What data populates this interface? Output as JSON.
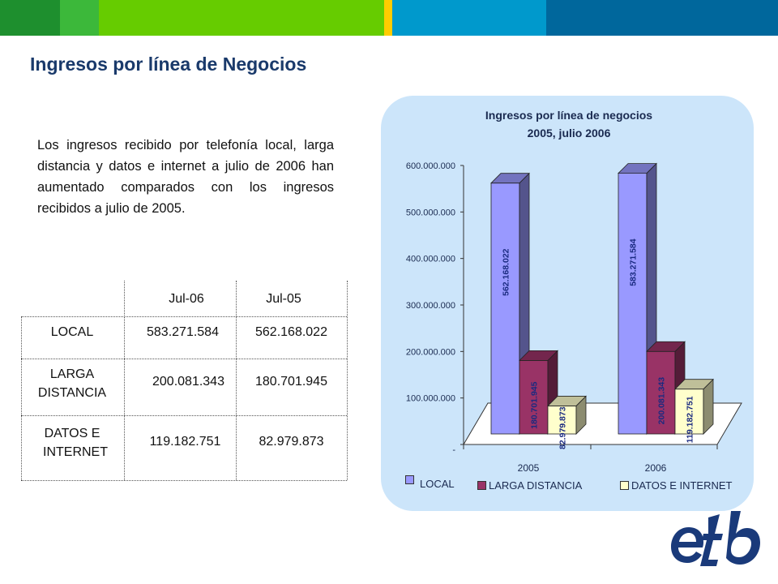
{
  "slide": {
    "title": "Ingresos por línea de Negocios",
    "paragraph": "Los ingresos recibido por telefonía local, larga distancia y datos e internet a julio de 2006 han aumentado comparados con los ingresos recibidos a julio de 2005.",
    "colors": {
      "band_dark_green": "#1e8f2e",
      "band_green": "#3cb83a",
      "band_lime": "#66cc00",
      "band_yellow": "#ffcc00",
      "band_blue": "#0099cc",
      "band_dark_blue": "#00679c",
      "title": "#1a3a6b",
      "panel": "#cce5fa"
    }
  },
  "table": {
    "headers": [
      "Jul-06",
      "Jul-05"
    ],
    "rows": [
      {
        "label_lines": [
          "LOCAL"
        ],
        "jul06": "583.271.584",
        "jul05": "562.168.022"
      },
      {
        "label_lines": [
          "LARGA",
          "DISTANCIA"
        ],
        "jul06": "200.081.343",
        "jul05": "180.701.945"
      },
      {
        "label_lines": [
          "DATOS E",
          "INTERNET"
        ],
        "jul06": "119.182.751",
        "jul05": "82.979.873"
      }
    ]
  },
  "chart_data": {
    "type": "bar",
    "title_lines": [
      "Ingresos por línea de negocios",
      "2005, julio 2006"
    ],
    "categories": [
      "2005",
      "2006"
    ],
    "series": [
      {
        "name": "LOCAL",
        "color": "#9999ff",
        "values": [
          562168022,
          583271584
        ],
        "labels": [
          "562.168.022",
          "583.271.584"
        ]
      },
      {
        "name": "LARGA DISTANCIA",
        "color": "#993366",
        "values": [
          180701945,
          200081343
        ],
        "labels": [
          "180.701.945",
          "200.081.343"
        ]
      },
      {
        "name": "DATOS E INTERNET",
        "color": "#ffffcc",
        "values": [
          82979873,
          119182751
        ],
        "labels": [
          "82.979.873",
          "119.182.751"
        ]
      }
    ],
    "y_ticks": [
      {
        "value": 0,
        "label": "-"
      },
      {
        "value": 100000000,
        "label": "100.000.000"
      },
      {
        "value": 200000000,
        "label": "200.000.000"
      },
      {
        "value": 300000000,
        "label": "300.000.000"
      },
      {
        "value": 400000000,
        "label": "400.000.000"
      },
      {
        "value": 500000000,
        "label": "500.000.000"
      },
      {
        "value": 600000000,
        "label": "600.000.000"
      }
    ],
    "ylim": [
      0,
      600000000
    ],
    "bar_style": "3d",
    "legend_position": "bottom",
    "grid": false
  },
  "logo": {
    "text": "etb",
    "color": "#1a3a7a"
  }
}
